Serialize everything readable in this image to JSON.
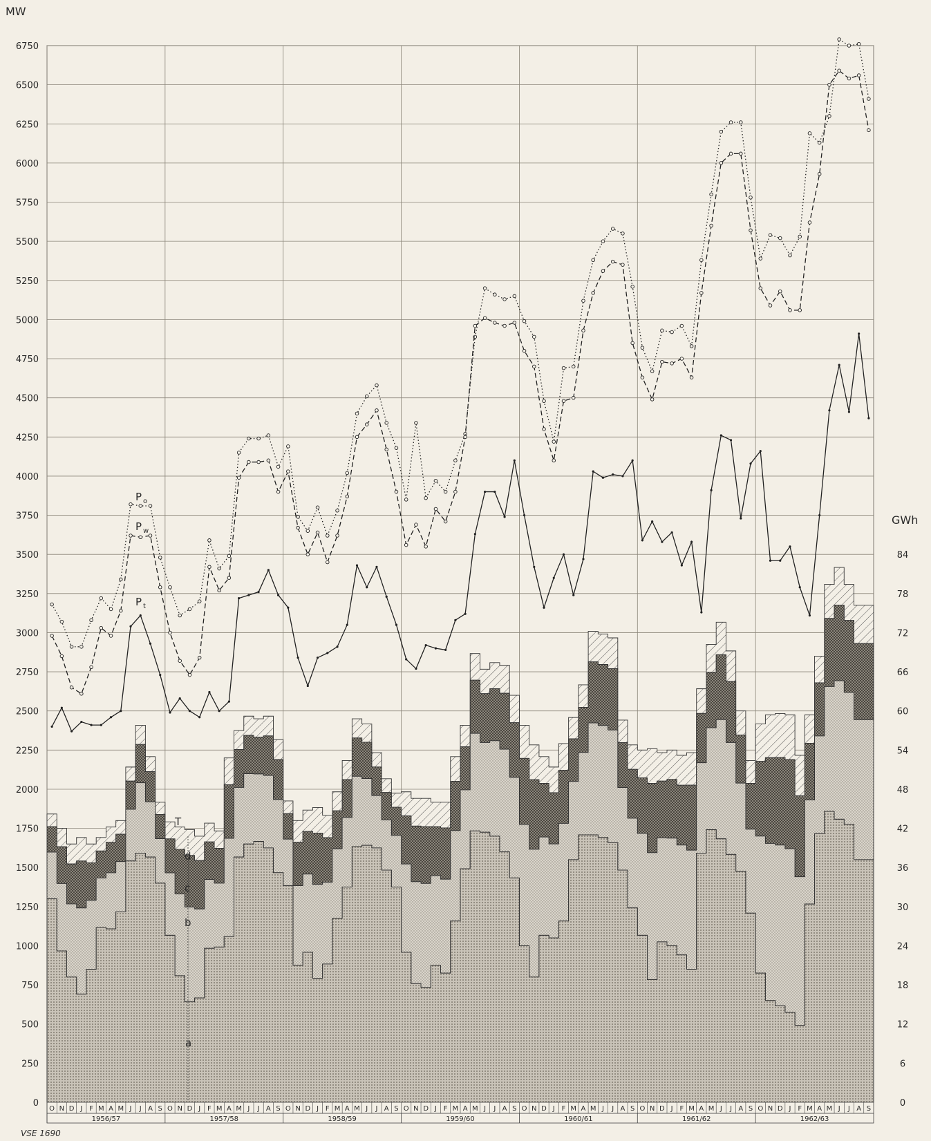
{
  "chart_data": {
    "type": "line",
    "left_axis": {
      "unit": "MW",
      "ticks": [
        0,
        250,
        500,
        750,
        1000,
        1250,
        1500,
        1750,
        2000,
        2250,
        2500,
        2750,
        3000,
        3250,
        3500,
        3750,
        4000,
        4250,
        4500,
        4750,
        5000,
        5250,
        5500,
        5750,
        6000,
        6250,
        6500,
        6750
      ],
      "range": [
        0,
        6750
      ]
    },
    "right_axis": {
      "unit": "GWh",
      "ticks": [
        0,
        6,
        12,
        18,
        24,
        30,
        36,
        42,
        48,
        54,
        60,
        66,
        72,
        78,
        84
      ],
      "range": [
        0,
        84
      ]
    },
    "months": [
      "O",
      "N",
      "D",
      "J",
      "F",
      "M",
      "A",
      "M",
      "J",
      "J",
      "A",
      "S"
    ],
    "years": [
      "1956/57",
      "1957/58",
      "1958/59",
      "1959/60",
      "1960/61",
      "1961/62",
      "1962/63"
    ],
    "series": [
      {
        "name": "Po",
        "style": "dotted",
        "values": [
          3180,
          3070,
          2910,
          2910,
          3080,
          3220,
          3150,
          3340,
          3820,
          3810,
          3810,
          3480,
          3290,
          3110,
          3150,
          3200,
          3590,
          3410,
          3490,
          4150,
          4240,
          4240,
          4260,
          4060,
          4190,
          3740,
          3650,
          3800,
          3620,
          3780,
          4020,
          4400,
          4510,
          4580,
          4340,
          4180,
          3850,
          4340,
          3860,
          3970,
          3900,
          4100,
          4270,
          4890,
          5200,
          5160,
          5130,
          5150,
          4990,
          4890,
          4480,
          4220,
          4690,
          4700,
          5120,
          5380,
          5500,
          5580,
          5550,
          5210,
          4820,
          4670,
          4930,
          4920,
          4960,
          4830,
          5380,
          5800,
          6200,
          6260,
          6260,
          5780,
          5390,
          5540,
          5520,
          5410,
          5530,
          6190,
          6130,
          6300,
          6790,
          6750,
          6760,
          6410
        ]
      },
      {
        "name": "Pw",
        "style": "dashed",
        "values": [
          2980,
          2850,
          2650,
          2610,
          2780,
          3030,
          2980,
          3140,
          3620,
          3610,
          3620,
          3290,
          3000,
          2820,
          2730,
          2840,
          3420,
          3270,
          3350,
          3990,
          4090,
          4090,
          4100,
          3900,
          4030,
          3670,
          3500,
          3640,
          3450,
          3620,
          3870,
          4250,
          4330,
          4420,
          4170,
          3900,
          3560,
          3690,
          3550,
          3790,
          3710,
          3900,
          4250,
          4960,
          5010,
          4980,
          4960,
          4980,
          4800,
          4700,
          4300,
          4100,
          4480,
          4500,
          4930,
          5170,
          5310,
          5370,
          5350,
          4850,
          4630,
          4490,
          4730,
          4720,
          4750,
          4630,
          5170,
          5600,
          6000,
          6060,
          6060,
          5570,
          5200,
          5090,
          5180,
          5060,
          5060,
          5620,
          5930,
          6500,
          6590,
          6540,
          6560,
          6210
        ]
      },
      {
        "name": "Pt",
        "style": "solid",
        "values": [
          2400,
          2520,
          2370,
          2430,
          2410,
          2410,
          2460,
          2500,
          3040,
          3110,
          2930,
          2730,
          2490,
          2580,
          2500,
          2460,
          2620,
          2500,
          2560,
          3220,
          3240,
          3260,
          3400,
          3240,
          3160,
          2840,
          2660,
          2840,
          2870,
          2910,
          3050,
          3430,
          3290,
          3420,
          3230,
          3050,
          2830,
          2770,
          2920,
          2900,
          2890,
          3080,
          3120,
          3630,
          3900,
          3900,
          3740,
          4100,
          3750,
          3420,
          3160,
          3350,
          3500,
          3240,
          3470,
          4030,
          3990,
          4010,
          4000,
          4100,
          3590,
          3710,
          3580,
          3640,
          3430,
          3580,
          3130,
          3910,
          4260,
          4230,
          3730,
          4080,
          4160,
          3460,
          3460,
          3550,
          3290,
          3110,
          3750,
          4420,
          4710,
          4410,
          4910,
          4370
        ]
      }
    ],
    "energy_bands_gwh": {
      "a": [
        31.2,
        23.2,
        19.2,
        16.6,
        20.4,
        26.8,
        26.6,
        29.2,
        37.0,
        38.2,
        37.6,
        33.6,
        25.6,
        19.4,
        15.4,
        16.0,
        23.6,
        23.8,
        25.4,
        37.6,
        39.6,
        40.0,
        39.0,
        35.2,
        33.2,
        21.0,
        23.0,
        19.0,
        21.2,
        28.2,
        33.0,
        39.2,
        39.4,
        39.0,
        35.6,
        33.0,
        23.0,
        18.2,
        17.6,
        21.0,
        19.8,
        27.8,
        35.8,
        41.6,
        41.4,
        40.8,
        38.4,
        34.4,
        24.0,
        19.2,
        25.6,
        25.2,
        27.8,
        37.2,
        41.0,
        41.0,
        40.6,
        39.8,
        35.6,
        29.8,
        25.6,
        18.8,
        24.6,
        24.0,
        22.6,
        20.4,
        38.2,
        41.8,
        40.4,
        38.0,
        35.4,
        29.0,
        19.8,
        15.6,
        14.8,
        13.8,
        11.8,
        30.4,
        41.2,
        44.6,
        43.4,
        42.6,
        37.2,
        37.2
      ],
      "total": [
        44.2,
        42.0,
        39.6,
        40.6,
        39.6,
        40.6,
        42.2,
        43.2,
        51.4,
        57.8,
        53.0,
        46.0,
        43.0,
        42.2,
        41.8,
        40.8,
        42.8,
        41.6,
        52.8,
        57.0,
        59.2,
        58.8,
        59.2,
        55.6,
        46.2,
        43.2,
        44.8,
        45.2,
        44.0,
        47.6,
        52.4,
        58.8,
        58.0,
        53.6,
        49.6,
        47.4,
        47.6,
        46.6,
        46.6,
        46.0,
        46.0,
        53.0,
        57.8,
        68.8,
        66.4,
        67.4,
        67.0,
        62.4,
        57.8,
        54.8,
        53.0,
        51.4,
        55.0,
        59.0,
        64.0,
        72.2,
        71.8,
        71.2,
        58.6,
        54.8,
        54.0,
        54.2,
        53.6,
        54.0,
        53.2,
        53.6,
        63.4,
        70.2,
        73.6,
        69.2,
        60.0,
        52.4,
        58.0,
        59.4,
        59.6,
        59.4,
        53.2,
        59.4,
        68.4,
        79.4,
        82.0,
        79.4,
        76.2,
        76.2
      ]
    }
  },
  "labels": {
    "mw": "MW",
    "gwh": "GWh",
    "po_main": "P",
    "po_sub": "o",
    "pw_main": "P",
    "pw_sub": "w",
    "pt_main": "P",
    "pt_sub": "t",
    "band_t": "T",
    "band_d": "d",
    "band_c": "c",
    "band_b": "b",
    "band_a": "a",
    "footer": "VSE 1690"
  }
}
